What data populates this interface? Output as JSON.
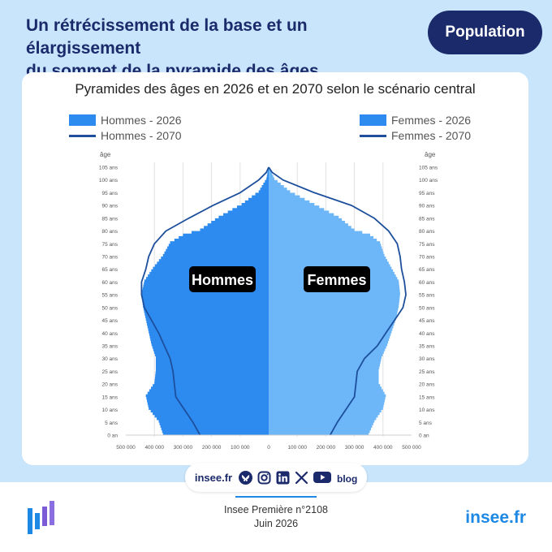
{
  "header": {
    "headline_line1": "Un rétrécissement de la base et un élargissement",
    "headline_line2": "du sommet de la pyramide des âges",
    "tag": "Population"
  },
  "colors": {
    "men_2026": "#2d8bf0",
    "women_2026": "#6db6f8",
    "line_2070": "#1d4f9c",
    "label_box": "#000000"
  },
  "chart_data": {
    "type": "bar",
    "orientation": "horizontal-population-pyramid",
    "title": "Pyramides des âges en 2026 et en 2070 selon le scénario central",
    "legend": {
      "men_2026": "Hommes - 2026",
      "men_2070": "Hommes - 2070",
      "women_2026": "Femmes - 2026",
      "women_2070": "Femmes - 2070"
    },
    "y_axis_title": "âge",
    "y_ticks": [
      "0 an",
      "5 ans",
      "10 ans",
      "15 ans",
      "20 ans",
      "25 ans",
      "30 ans",
      "35 ans",
      "40 ans",
      "45 ans",
      "50 ans",
      "55 ans",
      "60 ans",
      "65 ans",
      "70 ans",
      "75 ans",
      "80 ans",
      "85 ans",
      "90 ans",
      "95 ans",
      "100 ans",
      "105 ans"
    ],
    "x_ticks": [
      "500 000",
      "400 000",
      "300 000",
      "200 000",
      "100 000",
      "0",
      "100 000",
      "200 000",
      "300 000",
      "400 000",
      "500 000"
    ],
    "xlim": [
      -500000,
      500000
    ],
    "ylim": [
      0,
      105
    ],
    "annotations": {
      "men": "Hommes",
      "women": "Femmes"
    },
    "series": [
      {
        "name": "Hommes - 2026",
        "kind": "bars",
        "side": "left",
        "ages": [
          0,
          5,
          10,
          15,
          20,
          25,
          30,
          35,
          40,
          45,
          50,
          55,
          60,
          65,
          70,
          75,
          78,
          80,
          85,
          90,
          95,
          100,
          105
        ],
        "values": [
          370000,
          385000,
          420000,
          430000,
          400000,
          395000,
          395000,
          410000,
          420000,
          430000,
          440000,
          445000,
          435000,
          405000,
          370000,
          345000,
          300000,
          240000,
          175000,
          95000,
          35000,
          8000,
          0
        ]
      },
      {
        "name": "Femmes - 2026",
        "kind": "bars",
        "side": "right",
        "ages": [
          0,
          5,
          10,
          15,
          20,
          25,
          30,
          35,
          40,
          45,
          50,
          55,
          60,
          65,
          70,
          75,
          78,
          80,
          85,
          90,
          95,
          100,
          105
        ],
        "values": [
          350000,
          370000,
          400000,
          410000,
          385000,
          385000,
          395000,
          415000,
          430000,
          445000,
          455000,
          460000,
          455000,
          430000,
          405000,
          390000,
          355000,
          300000,
          245000,
          160000,
          75000,
          20000,
          0
        ]
      },
      {
        "name": "Hommes - 2070",
        "kind": "line",
        "side": "left",
        "ages": [
          0,
          5,
          10,
          15,
          20,
          25,
          30,
          35,
          40,
          45,
          50,
          55,
          60,
          65,
          70,
          75,
          80,
          85,
          90,
          95,
          100,
          103,
          105
        ],
        "values": [
          240000,
          265000,
          295000,
          325000,
          330000,
          335000,
          345000,
          365000,
          385000,
          410000,
          435000,
          445000,
          445000,
          430000,
          420000,
          400000,
          360000,
          280000,
          195000,
          100000,
          35000,
          8000,
          0
        ]
      },
      {
        "name": "Femmes - 2070",
        "kind": "line",
        "side": "right",
        "ages": [
          0,
          5,
          10,
          15,
          20,
          25,
          30,
          35,
          40,
          45,
          50,
          55,
          60,
          65,
          70,
          75,
          80,
          85,
          90,
          95,
          100,
          103,
          105
        ],
        "values": [
          215000,
          240000,
          270000,
          300000,
          305000,
          310000,
          335000,
          380000,
          410000,
          440000,
          470000,
          480000,
          475000,
          465000,
          460000,
          450000,
          420000,
          370000,
          290000,
          160000,
          50000,
          12000,
          0
        ]
      }
    ]
  },
  "footer": {
    "site_pill": "insee.fr",
    "social_icons": [
      "bluesky-icon",
      "instagram-icon",
      "linkedin-icon",
      "x-icon",
      "youtube-icon",
      "blog-icon"
    ],
    "blog_label": "blog",
    "publication": "Insee Première n°2108",
    "date": "Juin 2026",
    "brand": "insee.fr"
  }
}
